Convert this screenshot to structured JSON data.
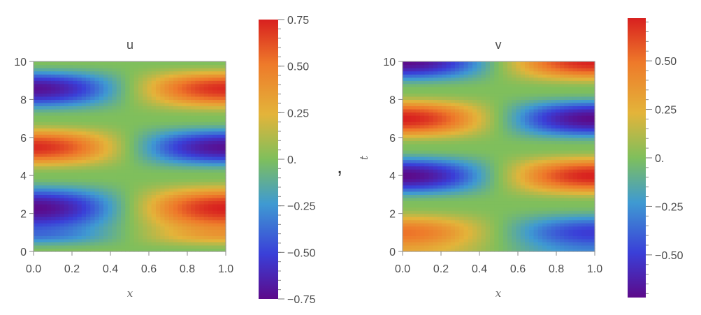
{
  "separator": ",",
  "chart_data": [
    {
      "type": "heatmap",
      "title": "u",
      "xlabel": "x",
      "ylabel": "",
      "xlim": [
        0,
        1
      ],
      "ylim": [
        0,
        10
      ],
      "x_ticks": [
        "0.0",
        "0.2",
        "0.4",
        "0.6",
        "0.8",
        "1.0"
      ],
      "y_ticks": [
        "0",
        "2",
        "4",
        "6",
        "8",
        "10"
      ],
      "colorbar": {
        "min": -0.75,
        "max": 0.75,
        "ticks": [
          "0.75",
          "0.50",
          "0.25",
          "0.",
          "−0.25",
          "−0.50",
          "−0.75"
        ],
        "tick_values": [
          0.75,
          0.5,
          0.25,
          0,
          -0.25,
          -0.5,
          -0.75
        ]
      },
      "field": "u(x,t) ≈ −A(t)·cos(πx), peak amplitude ≈ 0.75",
      "amplitude_samples": {
        "t": [
          0,
          1,
          2.3,
          4,
          5.5,
          7,
          8.6,
          10
        ],
        "A": [
          0,
          0.4,
          0.75,
          0,
          -0.72,
          0,
          0.72,
          0
        ]
      }
    },
    {
      "type": "heatmap",
      "title": "v",
      "xlabel": "x",
      "ylabel": "t",
      "xlim": [
        0,
        1
      ],
      "ylim": [
        0,
        10
      ],
      "x_ticks": [
        "0.0",
        "0.2",
        "0.4",
        "0.6",
        "0.8",
        "1.0"
      ],
      "y_ticks": [
        "0",
        "2",
        "4",
        "6",
        "8",
        "10"
      ],
      "colorbar": {
        "min": -0.72,
        "max": 0.72,
        "ticks": [
          "0.50",
          "0.25",
          "0.",
          "−0.25",
          "−0.50"
        ],
        "tick_values": [
          0.5,
          0.25,
          0,
          -0.25,
          -0.5
        ]
      },
      "field": "v(x,t) ≈ −B(t)·cos(πx), peak amplitude ≈ 0.72",
      "amplitude_samples": {
        "t": [
          0,
          1,
          2.5,
          4,
          5.5,
          7,
          8.5,
          10
        ],
        "B": [
          -0.3,
          -0.5,
          0,
          0.72,
          0,
          -0.72,
          0,
          0.72
        ]
      }
    }
  ],
  "colors": [
    "#5c0a8a",
    "#3a3fd8",
    "#3f9ad2",
    "#7fbf5c",
    "#e3b43a",
    "#ee7a2a",
    "#d8201f"
  ]
}
